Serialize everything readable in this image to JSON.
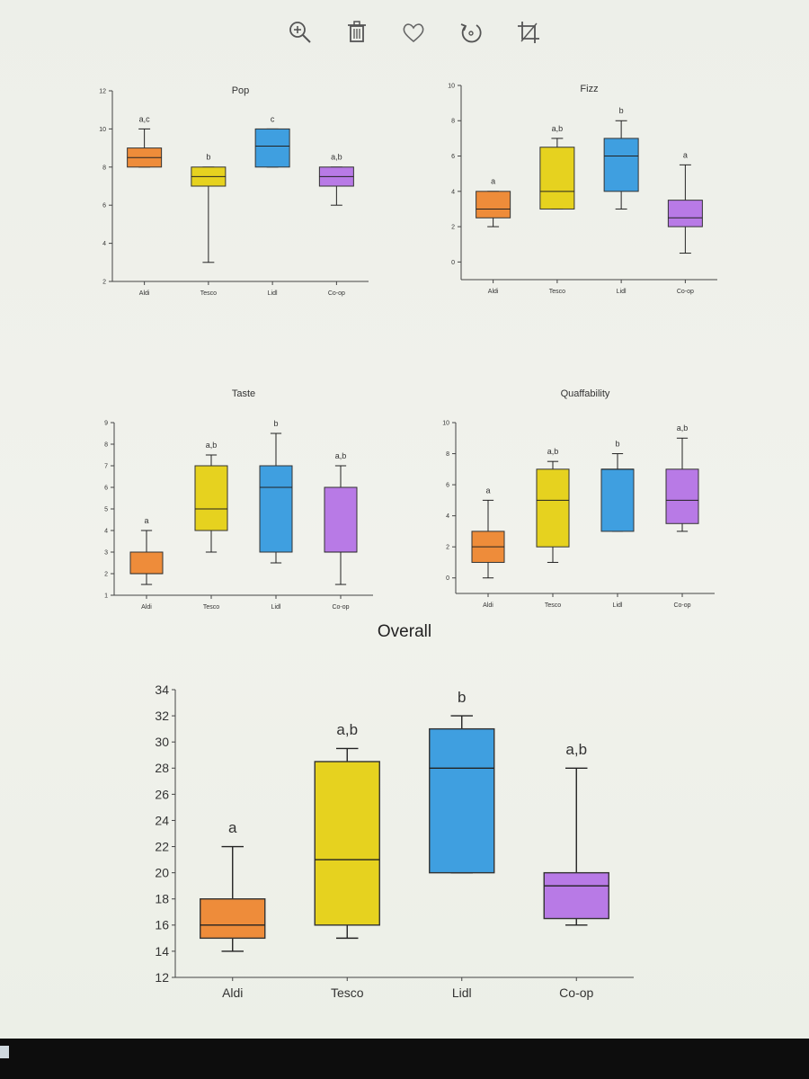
{
  "toolbar": {
    "icons": [
      "zoom-in-icon",
      "trash-icon",
      "heart-icon",
      "rotate-icon",
      "crop-icon"
    ]
  },
  "colors": {
    "Aldi": "#ee8c3a",
    "Tesco": "#e6d21f",
    "Lidl": "#3f9fe0",
    "Co-op": "#b87ae6"
  },
  "overall_title": "Overall",
  "chart_data": [
    {
      "id": "pop",
      "type": "box",
      "title": "Pop",
      "categories": [
        "Aldi",
        "Tesco",
        "Lidl",
        "Co-op"
      ],
      "ylim": [
        2,
        12
      ],
      "yticks": [
        "2",
        "4",
        "6",
        "8",
        "10",
        "12"
      ],
      "boxes": [
        {
          "min": 8,
          "q1": 8,
          "median": 8.5,
          "q3": 9,
          "max": 10,
          "sig": "a,c"
        },
        {
          "min": 3,
          "q1": 7,
          "median": 7.5,
          "q3": 8,
          "max": 8,
          "sig": "b"
        },
        {
          "min": 8,
          "q1": 8,
          "median": 9.1,
          "q3": 10,
          "max": 10,
          "sig": "c"
        },
        {
          "min": 6,
          "q1": 7,
          "median": 7.5,
          "q3": 8,
          "max": 8,
          "sig": "a,b"
        }
      ]
    },
    {
      "id": "fizz",
      "type": "box",
      "title": "Fizz",
      "categories": [
        "Aldi",
        "Tesco",
        "Lidl",
        "Co-op"
      ],
      "ylim": [
        -1,
        10
      ],
      "yticks": [
        "0",
        "2",
        "4",
        "6",
        "8",
        "10"
      ],
      "boxes": [
        {
          "min": 2,
          "q1": 2.5,
          "median": 3,
          "q3": 4,
          "max": 4,
          "sig": "a"
        },
        {
          "min": 3,
          "q1": 3,
          "median": 4,
          "q3": 6.5,
          "max": 7,
          "sig": "a,b"
        },
        {
          "min": 3,
          "q1": 4,
          "median": 6,
          "q3": 7,
          "max": 8,
          "sig": "b"
        },
        {
          "min": 0.5,
          "q1": 2,
          "median": 2.5,
          "q3": 3.5,
          "max": 5.5,
          "sig": "a"
        }
      ]
    },
    {
      "id": "taste",
      "type": "box",
      "title": "Taste",
      "categories": [
        "Aldi",
        "Tesco",
        "Lidl",
        "Co-op"
      ],
      "ylim": [
        1,
        9
      ],
      "yticks": [
        "1",
        "2",
        "3",
        "4",
        "5",
        "6",
        "7",
        "8",
        "9"
      ],
      "boxes": [
        {
          "min": 1.5,
          "q1": 2,
          "median": 2,
          "q3": 3,
          "max": 4,
          "sig": "a"
        },
        {
          "min": 3,
          "q1": 4,
          "median": 5,
          "q3": 7,
          "max": 7.5,
          "sig": "a,b"
        },
        {
          "min": 2.5,
          "q1": 3,
          "median": 6,
          "q3": 7,
          "max": 8.5,
          "sig": "b"
        },
        {
          "min": 1.5,
          "q1": 3,
          "median": 3,
          "q3": 6,
          "max": 7,
          "sig": "a,b"
        }
      ]
    },
    {
      "id": "quaffability",
      "type": "box",
      "title": "Quaffability",
      "categories": [
        "Aldi",
        "Tesco",
        "Lidl",
        "Co-op"
      ],
      "ylim": [
        -1,
        10
      ],
      "yticks": [
        "0",
        "2",
        "4",
        "6",
        "8",
        "10"
      ],
      "boxes": [
        {
          "min": 0,
          "q1": 1,
          "median": 2,
          "q3": 3,
          "max": 5,
          "sig": "a"
        },
        {
          "min": 1,
          "q1": 2,
          "median": 5,
          "q3": 7,
          "max": 7.5,
          "sig": "a,b"
        },
        {
          "min": 3,
          "q1": 3,
          "median": 7,
          "q3": 7,
          "max": 8,
          "sig": "b"
        },
        {
          "min": 3,
          "q1": 3.5,
          "median": 5,
          "q3": 7,
          "max": 9,
          "sig": "a,b"
        }
      ]
    },
    {
      "id": "overall",
      "type": "box",
      "title": "",
      "categories": [
        "Aldi",
        "Tesco",
        "Lidl",
        "Co-op"
      ],
      "ylim": [
        12,
        34
      ],
      "yticks": [
        "12",
        "14",
        "16",
        "18",
        "20",
        "22",
        "24",
        "26",
        "28",
        "30",
        "32",
        "34"
      ],
      "boxes": [
        {
          "min": 14,
          "q1": 15,
          "median": 16,
          "q3": 18,
          "max": 22,
          "sig": "a"
        },
        {
          "min": 15,
          "q1": 16,
          "median": 21,
          "q3": 28.5,
          "max": 29.5,
          "sig": "a,b"
        },
        {
          "min": 20,
          "q1": 20,
          "median": 28,
          "q3": 31,
          "max": 32,
          "sig": "b"
        },
        {
          "min": 16,
          "q1": 16.5,
          "median": 19,
          "q3": 20,
          "max": 28,
          "sig": "a,b"
        }
      ]
    }
  ]
}
